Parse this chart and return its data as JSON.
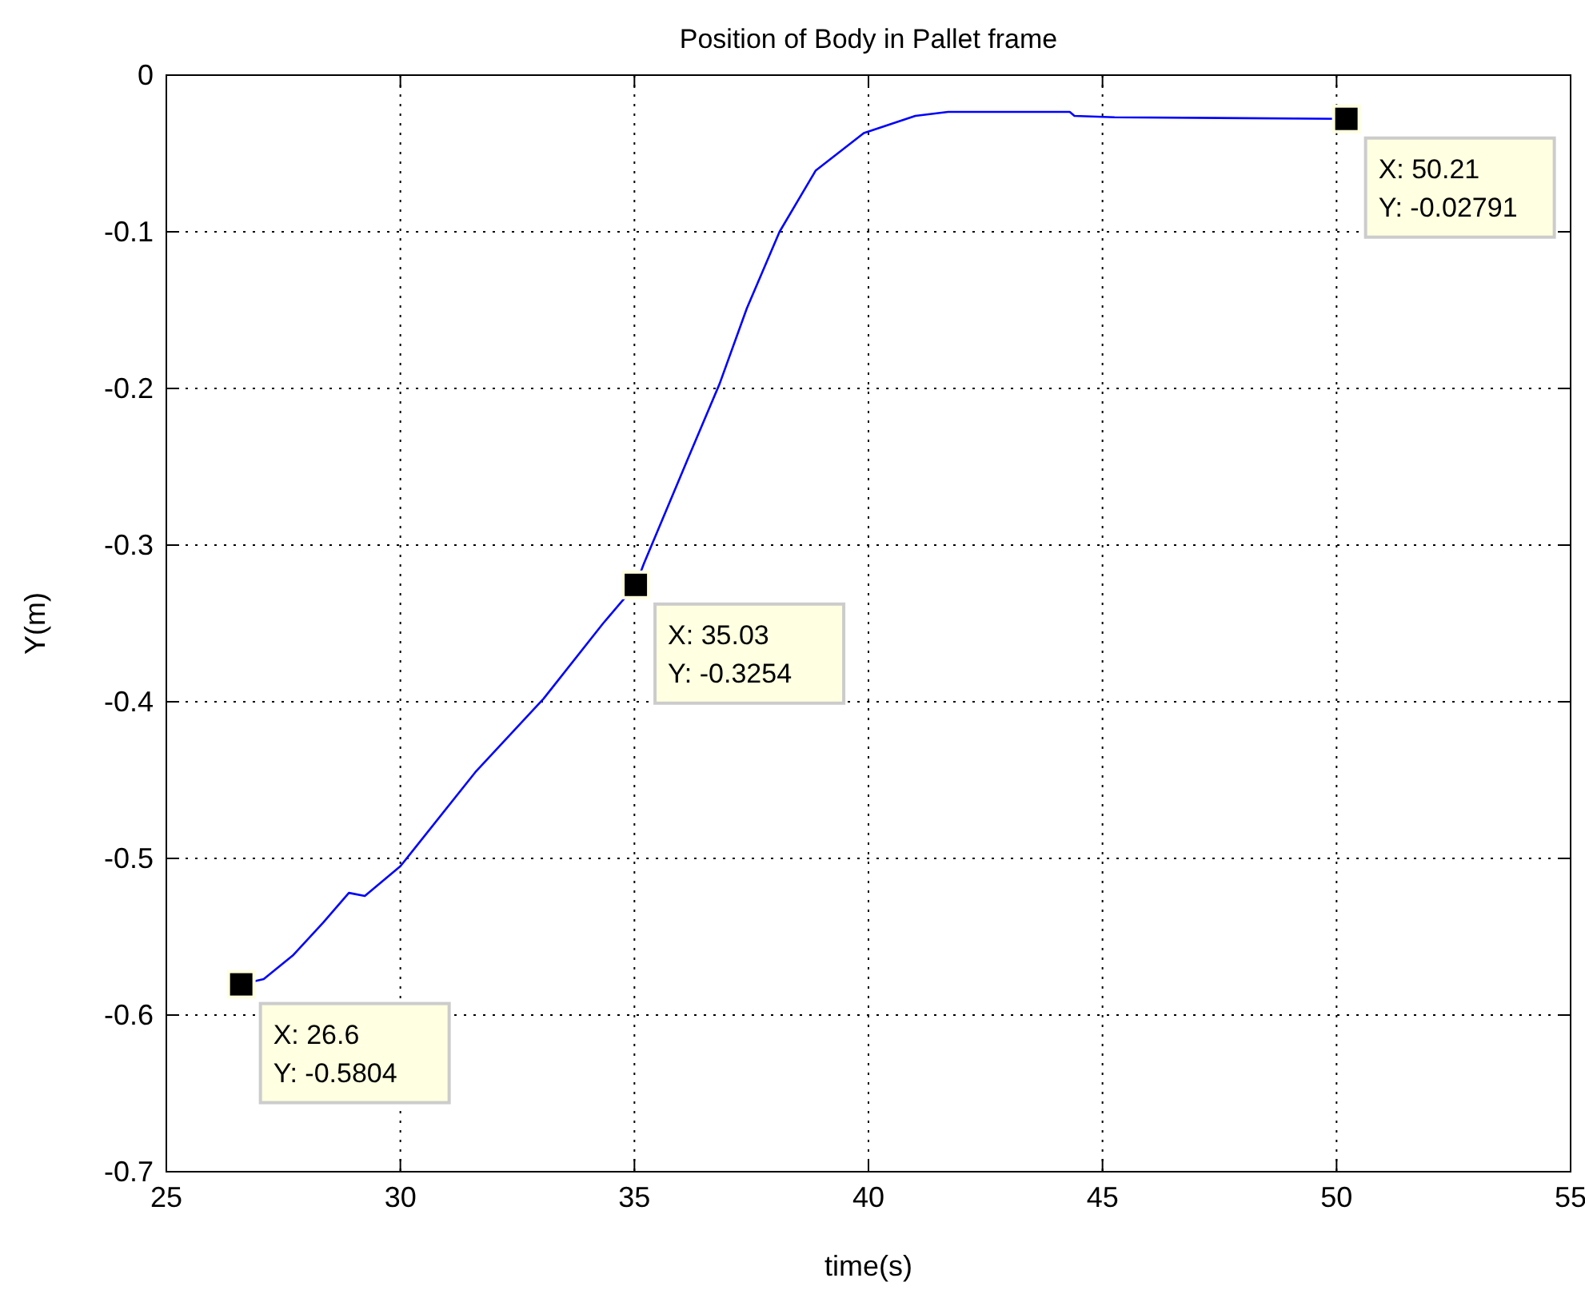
{
  "chart_data": {
    "type": "line",
    "title": "Position of Body in Pallet frame",
    "xlabel": "time(s)",
    "ylabel": "Y(m)",
    "xlim": [
      25,
      55
    ],
    "xticks": [
      25,
      30,
      35,
      40,
      45,
      50,
      55
    ],
    "ylim": [
      -0.7,
      0
    ],
    "yticks": [
      -0.7,
      -0.6,
      -0.5,
      -0.4,
      -0.3,
      -0.2,
      -0.1,
      0
    ],
    "grid": true,
    "line_style": "solid",
    "marker": "none",
    "series": [
      {
        "color": "#0000ff",
        "x": [
          26.6,
          27.08,
          27.7,
          28.35,
          28.9,
          29.24,
          30.0,
          31.6,
          33.06,
          34.33,
          35.03,
          35.2,
          36.14,
          36.82,
          37.4,
          38.1,
          38.87,
          39.9,
          41.0,
          41.7,
          44.3,
          44.4,
          45.26,
          50.21
        ],
        "values": [
          -0.5804,
          -0.577,
          -0.562,
          -0.541,
          -0.522,
          -0.524,
          -0.505,
          -0.445,
          -0.398,
          -0.35,
          -0.3254,
          -0.312,
          -0.245,
          -0.197,
          -0.149,
          -0.1,
          -0.061,
          -0.037,
          -0.026,
          -0.0235,
          -0.0235,
          -0.026,
          -0.0269,
          -0.02791
        ]
      }
    ],
    "annotations": [
      {
        "text": "X: 26.6\nY: -0.5804",
        "x": 26.6,
        "y": -0.5804
      },
      {
        "text": "X: 35.03\nY: -0.3254",
        "x": 35.03,
        "y": -0.3254
      },
      {
        "text": "X: 50.21\nY: -0.02791",
        "x": 50.21,
        "y": -0.02791
      }
    ]
  }
}
